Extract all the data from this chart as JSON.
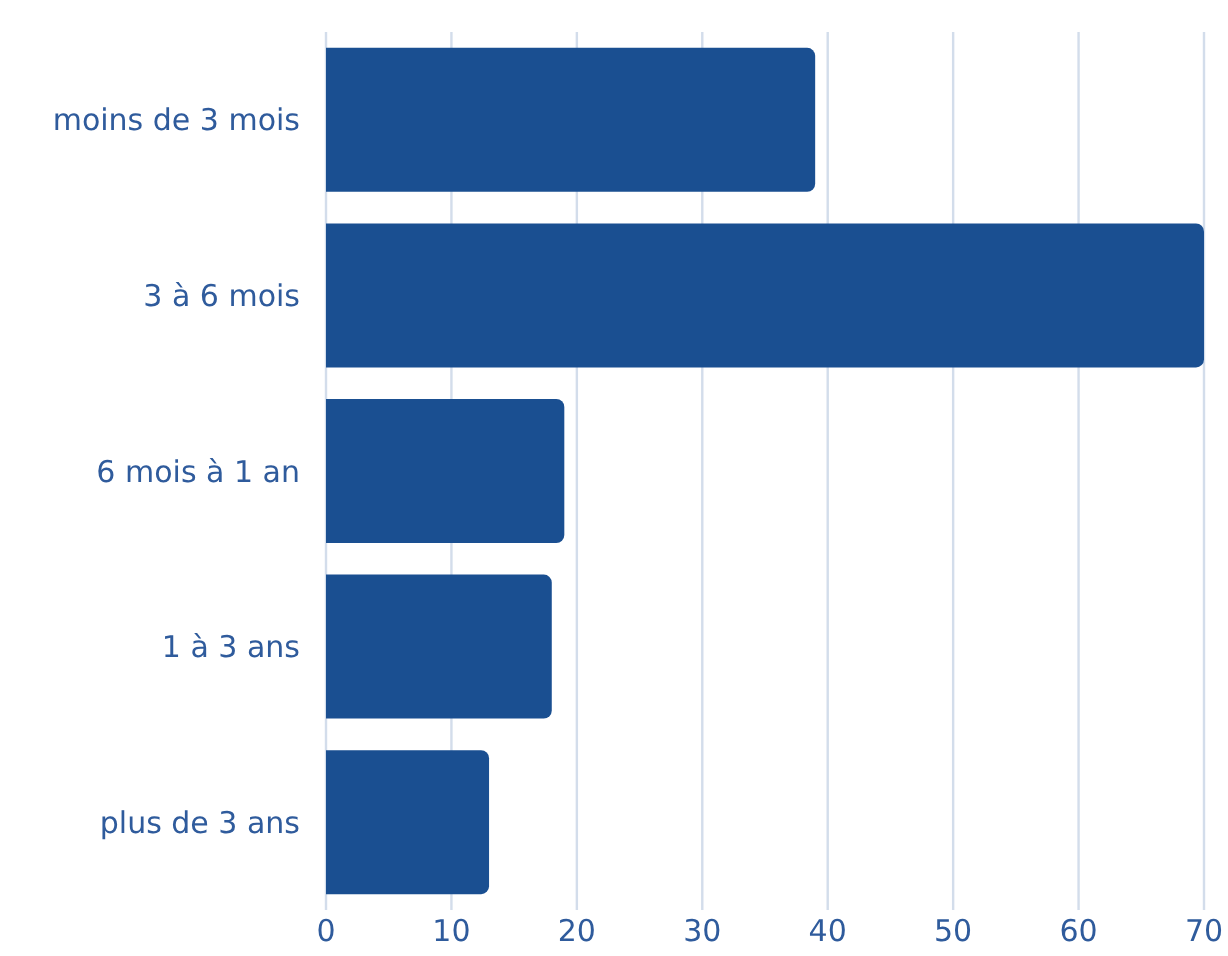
{
  "chart_data": {
    "type": "bar",
    "orientation": "horizontal",
    "categories": [
      "moins de 3 mois",
      "3 à 6 mois",
      "6 mois à 1 an",
      "1 à 3 ans",
      "plus de 3 ans"
    ],
    "values": [
      39,
      70,
      19,
      18,
      13
    ],
    "color": "#1a4f91",
    "xlim": [
      0,
      70
    ],
    "xticks": [
      0,
      10,
      20,
      30,
      40,
      50,
      60,
      70
    ],
    "grid": "x"
  }
}
